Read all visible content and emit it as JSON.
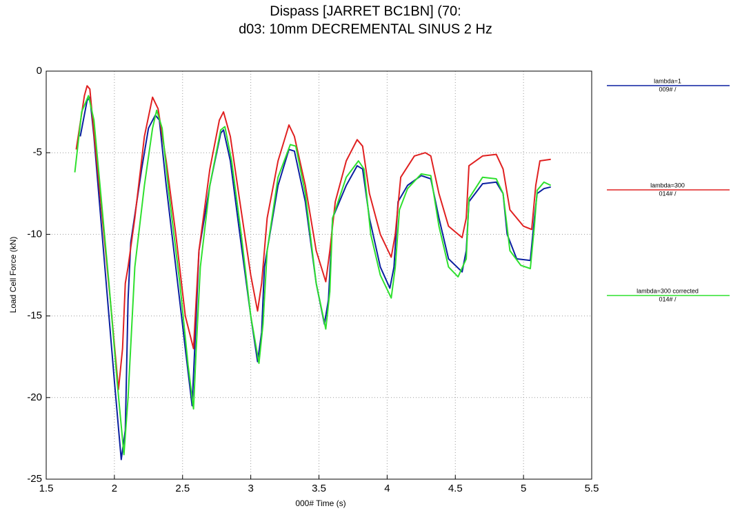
{
  "chart_data": {
    "type": "line",
    "title": "Dispass [JARRET BC1BN] (70:",
    "subtitle": "d03: 10mm DECREMENTAL SINUS 2 Hz",
    "x_label": "000#  Time (s)",
    "y_label": "Load Cell Force (kN)",
    "xlim": [
      1.5,
      5.5
    ],
    "xticks": [
      1.5,
      2,
      2.5,
      3,
      3.5,
      4,
      4.5,
      5,
      5.5
    ],
    "ylim": [
      -25,
      0
    ],
    "yticks": [
      -25,
      -20,
      -15,
      -10,
      -5,
      0
    ],
    "grid": true,
    "legend": "right",
    "series": [
      {
        "name": "lambda=1",
        "note": "009# /",
        "color": "#0a1fa0",
        "x": [
          1.75,
          1.8,
          1.82,
          1.85,
          1.9,
          1.95,
          2.0,
          2.05,
          2.08,
          2.1,
          2.12,
          2.2,
          2.25,
          2.3,
          2.33,
          2.38,
          2.45,
          2.52,
          2.57,
          2.6,
          2.62,
          2.7,
          2.78,
          2.8,
          2.85,
          2.92,
          3.0,
          3.05,
          3.08,
          3.1,
          3.2,
          3.28,
          3.32,
          3.4,
          3.48,
          3.54,
          3.57,
          3.6,
          3.7,
          3.78,
          3.82,
          3.87,
          3.95,
          4.02,
          4.05,
          4.08,
          4.15,
          4.25,
          4.32,
          4.38,
          4.45,
          4.55,
          4.58,
          4.6,
          4.7,
          4.8,
          4.85,
          4.88,
          4.95,
          5.05,
          5.08,
          5.1,
          5.15,
          5.2
        ],
        "values": [
          -4,
          -1.8,
          -1.6,
          -4,
          -9,
          -14,
          -19,
          -23.8,
          -22,
          -14,
          -10.5,
          -6,
          -3.5,
          -2.7,
          -3,
          -7,
          -12,
          -17,
          -20.5,
          -15,
          -11,
          -7,
          -3.8,
          -3.6,
          -5.5,
          -10,
          -15,
          -17.8,
          -16,
          -12,
          -7,
          -4.8,
          -4.9,
          -8,
          -13,
          -15.5,
          -14,
          -9,
          -7,
          -5.8,
          -6,
          -9,
          -12,
          -13.3,
          -12,
          -8,
          -7,
          -6.4,
          -6.6,
          -9,
          -11.5,
          -12.3,
          -11,
          -8,
          -6.9,
          -6.8,
          -7.5,
          -10,
          -11.5,
          -11.6,
          -9,
          -7.5,
          -7.2,
          -7.1
        ]
      },
      {
        "name": "lambda=300",
        "note": "014# /",
        "color": "#e02020",
        "x": [
          1.72,
          1.78,
          1.8,
          1.82,
          1.85,
          1.9,
          1.97,
          2.03,
          2.06,
          2.08,
          2.1,
          2.15,
          2.22,
          2.28,
          2.32,
          2.38,
          2.45,
          2.52,
          2.58,
          2.6,
          2.62,
          2.7,
          2.77,
          2.8,
          2.85,
          2.92,
          3.0,
          3.05,
          3.08,
          3.12,
          3.2,
          3.28,
          3.32,
          3.4,
          3.48,
          3.55,
          3.58,
          3.62,
          3.7,
          3.78,
          3.82,
          3.87,
          3.95,
          4.03,
          4.06,
          4.1,
          4.2,
          4.28,
          4.32,
          4.38,
          4.45,
          4.55,
          4.58,
          4.6,
          4.7,
          4.8,
          4.85,
          4.9,
          5.0,
          5.06,
          5.09,
          5.12,
          5.2
        ],
        "values": [
          -4.8,
          -1.5,
          -0.9,
          -1.1,
          -3.8,
          -8,
          -14,
          -19.5,
          -17,
          -13,
          -12,
          -9,
          -4,
          -1.6,
          -2.3,
          -5.5,
          -10,
          -15,
          -17,
          -14,
          -11,
          -6,
          -3,
          -2.5,
          -4,
          -8,
          -12.5,
          -14.7,
          -13,
          -9,
          -5.5,
          -3.3,
          -4,
          -7,
          -11,
          -12.9,
          -11,
          -8,
          -5.5,
          -4.2,
          -4.6,
          -7.5,
          -10,
          -11.4,
          -10,
          -6.5,
          -5.2,
          -5,
          -5.2,
          -7.5,
          -9.5,
          -10.2,
          -9,
          -5.8,
          -5.2,
          -5.1,
          -6,
          -8.5,
          -9.5,
          -9.7,
          -7,
          -5.5,
          -5.4
        ]
      },
      {
        "name": "lambda=300 corrected",
        "note": "014# /",
        "color": "#2ee02e",
        "x": [
          1.71,
          1.76,
          1.81,
          1.85,
          1.9,
          1.96,
          2.02,
          2.07,
          2.1,
          2.15,
          2.22,
          2.28,
          2.31,
          2.35,
          2.4,
          2.48,
          2.54,
          2.58,
          2.6,
          2.63,
          2.7,
          2.78,
          2.81,
          2.86,
          2.93,
          3.0,
          3.06,
          3.09,
          3.12,
          3.2,
          3.29,
          3.33,
          3.4,
          3.48,
          3.55,
          3.58,
          3.6,
          3.7,
          3.79,
          3.83,
          3.88,
          3.95,
          4.03,
          4.06,
          4.09,
          4.15,
          4.25,
          4.32,
          4.38,
          4.45,
          4.52,
          4.58,
          4.6,
          4.7,
          4.8,
          4.85,
          4.9,
          4.98,
          5.05,
          5.08,
          5.1,
          5.15,
          5.2
        ],
        "values": [
          -6.2,
          -2.5,
          -1.5,
          -3,
          -7.5,
          -13,
          -19,
          -23.5,
          -20,
          -12,
          -7,
          -3.5,
          -2.4,
          -3.5,
          -7.5,
          -13,
          -18,
          -20.7,
          -17,
          -12,
          -7,
          -3.6,
          -3.4,
          -5.5,
          -10,
          -15,
          -17.9,
          -15.5,
          -11,
          -6.5,
          -4.5,
          -4.6,
          -7.5,
          -13,
          -15.8,
          -13.5,
          -9,
          -6.5,
          -5.5,
          -6,
          -10,
          -12.5,
          -13.9,
          -12,
          -8.5,
          -7.2,
          -6.3,
          -6.4,
          -9.5,
          -12,
          -12.6,
          -11.5,
          -7.8,
          -6.5,
          -6.6,
          -7.5,
          -11,
          -11.9,
          -12.1,
          -9.5,
          -7.3,
          -6.8,
          -7
        ]
      }
    ]
  }
}
